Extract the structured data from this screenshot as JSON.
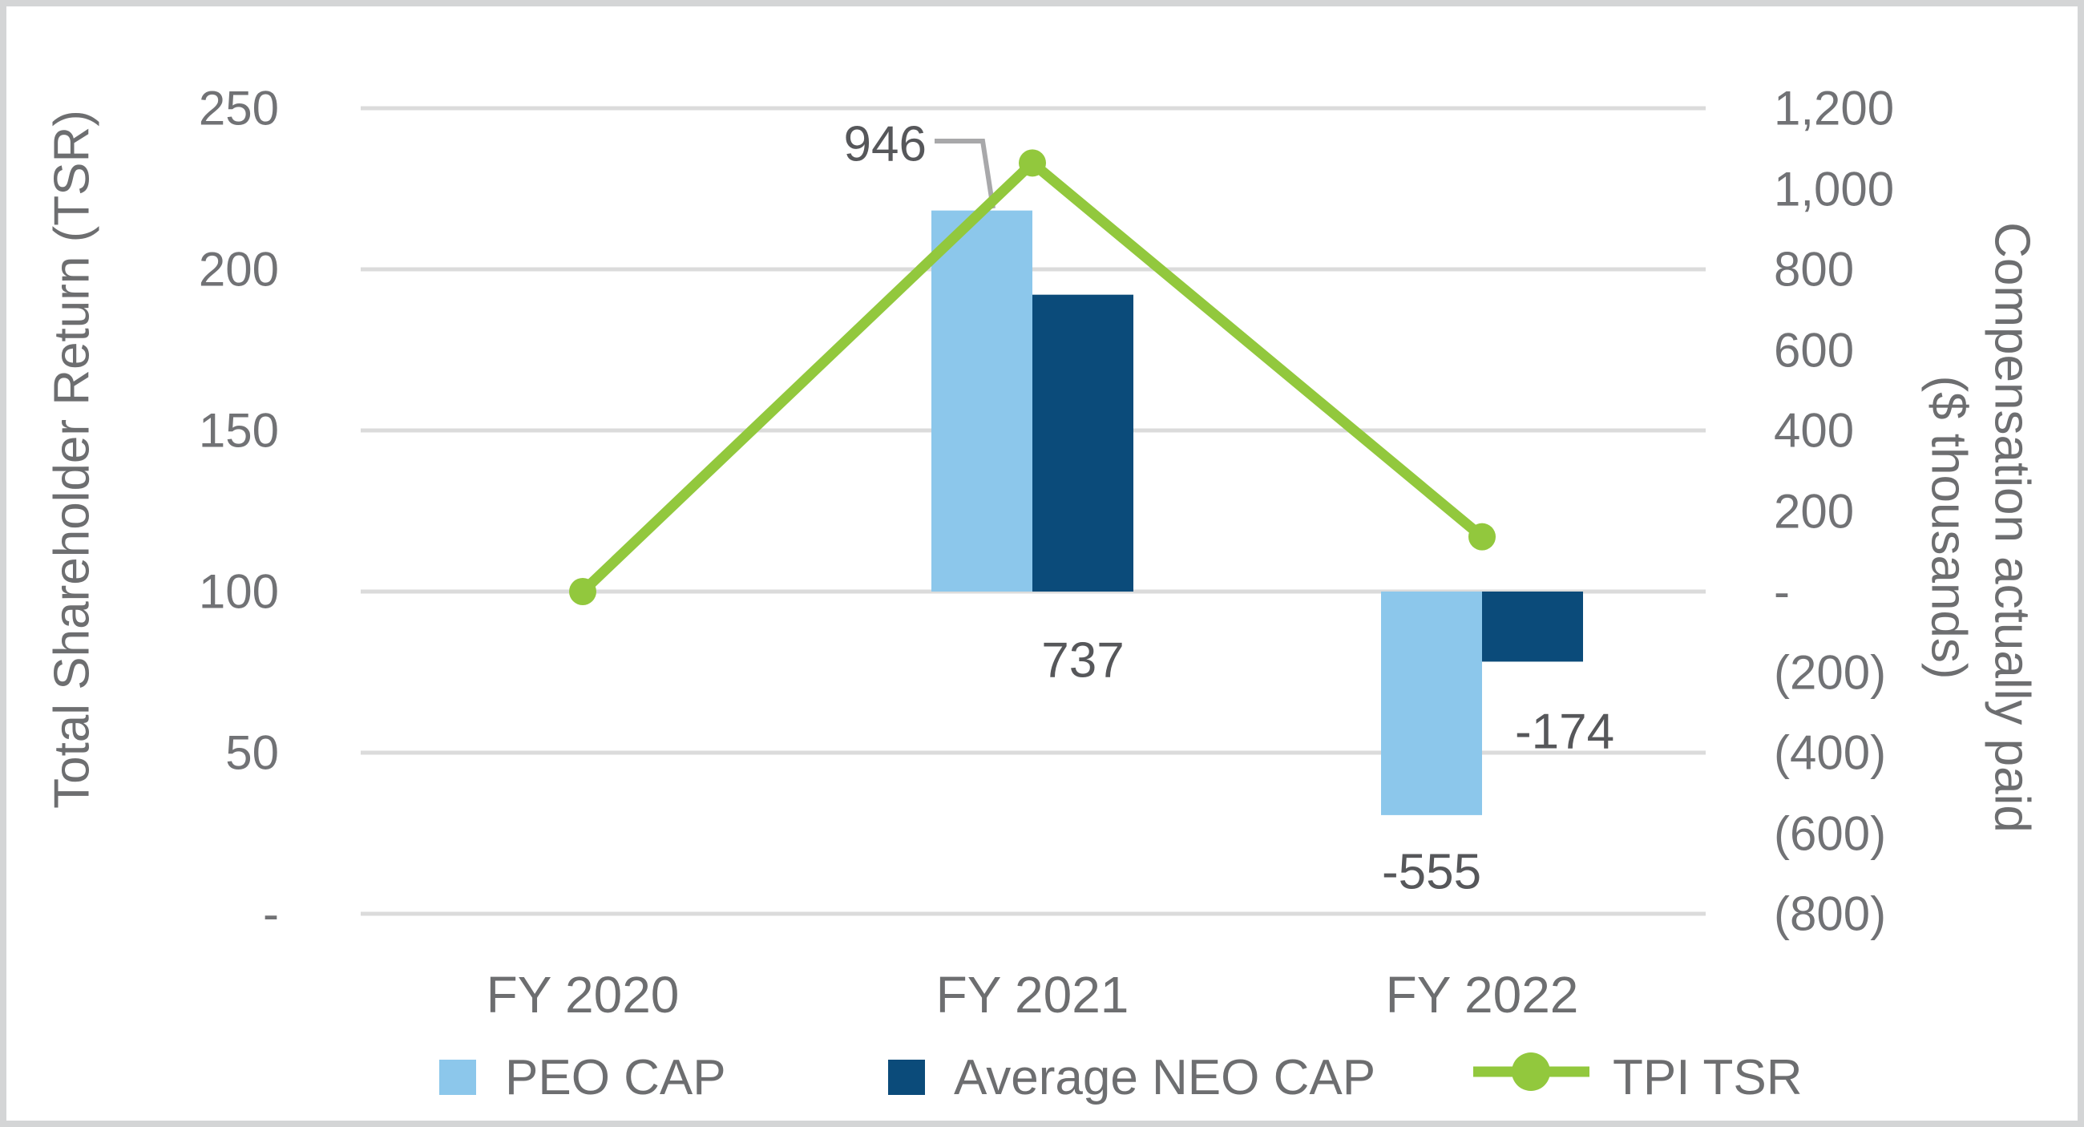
{
  "chart_data": {
    "type": "combo-bar-line",
    "categories": [
      "FY 2020",
      "FY 2021",
      "FY 2022"
    ],
    "bar_series": [
      {
        "name": "PEO CAP",
        "color": "#8CC7EB",
        "axis": "right",
        "values": [
          null,
          946,
          -555
        ],
        "labels": [
          "",
          "946",
          "-555"
        ]
      },
      {
        "name": "Average NEO CAP",
        "color": "#0B4B7A",
        "axis": "right",
        "values": [
          null,
          737,
          -174
        ],
        "labels": [
          "",
          "737",
          "-174"
        ]
      }
    ],
    "line_series": {
      "name": "TPI TSR",
      "color": "#92C83D",
      "axis": "left",
      "values": [
        100,
        233,
        117
      ]
    },
    "left_axis": {
      "title": "Total Shareholder Return (TSR)",
      "range": [
        0,
        250
      ],
      "ticks": [
        {
          "v": 250,
          "label": "250"
        },
        {
          "v": 200,
          "label": "200"
        },
        {
          "v": 150,
          "label": "150"
        },
        {
          "v": 100,
          "label": "100"
        },
        {
          "v": 50,
          "label": "50"
        },
        {
          "v": 0,
          "label": "-"
        }
      ]
    },
    "right_axis": {
      "title_line1": "Compensation actually paid",
      "title_line2": "($ thousands)",
      "range": [
        -800,
        1200
      ],
      "ticks": [
        {
          "v": 1200,
          "label": "1,200"
        },
        {
          "v": 1000,
          "label": "1,000"
        },
        {
          "v": 800,
          "label": "800"
        },
        {
          "v": 600,
          "label": "600"
        },
        {
          "v": 400,
          "label": "400"
        },
        {
          "v": 200,
          "label": "200"
        },
        {
          "v": 0,
          "label": "-"
        },
        {
          "v": -200,
          "label": "(200)"
        },
        {
          "v": -400,
          "label": "(400)"
        },
        {
          "v": -600,
          "label": "(600)"
        },
        {
          "v": -800,
          "label": "(800)"
        }
      ]
    },
    "grid": true,
    "grid_color": "#DBDBDB",
    "callout_color": "#A8A8AA",
    "legend_position": "bottom"
  }
}
